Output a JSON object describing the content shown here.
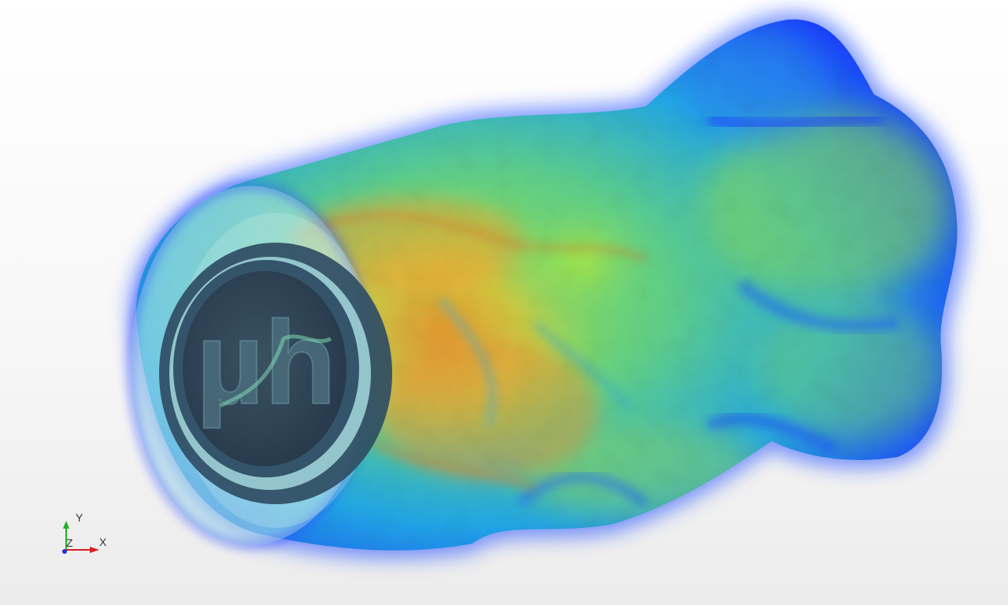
{
  "viewport": {
    "background_top": "#ffffff",
    "background_bottom": "#ececec",
    "colormap": [
      "#1a2cff",
      "#1e8cf0",
      "#22c8c8",
      "#7be35a",
      "#e8d13a",
      "#f08a28",
      "#c83a1a"
    ]
  },
  "model": {
    "logo_text": "µh",
    "ring_color": "#2f4d63",
    "disc_color": "#2d4455"
  },
  "orientation_axes": {
    "y_label": "Y",
    "x_label": "X",
    "z_label": "Z",
    "x_color": "#d62020",
    "y_color": "#22b022",
    "z_color": "#2030d0"
  }
}
